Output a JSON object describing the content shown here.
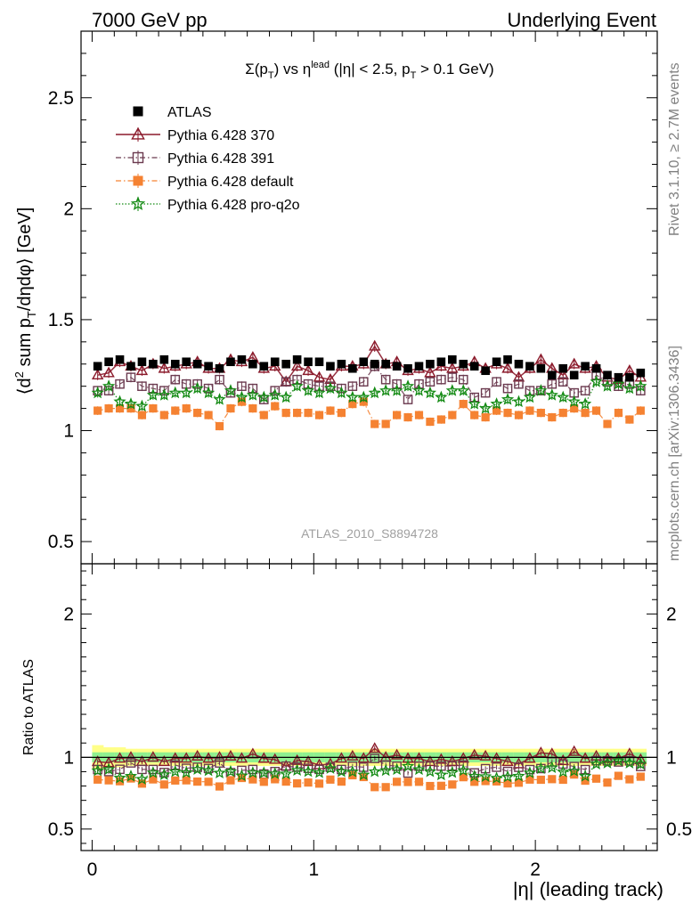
{
  "header": {
    "left": "7000 GeV pp",
    "right": "Underlying Event"
  },
  "side_labels": {
    "rivet": "Rivet 3.1.10, ≥ 2.7M events",
    "mcplots": "mcplots.cern.ch [arXiv:1306.3436]"
  },
  "chart_data": {
    "type": "scatter",
    "title_parts": {
      "sigma": "Σ(p",
      "sub_T": "T",
      "vs": ") vs η",
      "sup_lead": "lead",
      "cond": " (|η| < 2.5, p",
      "sub_T2": "T",
      "cond2": " > 0.1 GeV)"
    },
    "analysis_id": "ATLAS_2010_S8894728",
    "xlabel": "|η| (leading track)",
    "ylabel_parts": {
      "open": "⟨d",
      "sup2": "2",
      "mid": " sum p",
      "subT": "T",
      "close": "/dηdφ⟩ [GeV]"
    },
    "ratio_ylabel": "Ratio to ATLAS",
    "xlim": [
      -0.05,
      2.55
    ],
    "ylim": [
      0.4,
      2.8
    ],
    "ratio_ylim": [
      0.35,
      2.35
    ],
    "x_ticks": [
      0,
      1,
      2
    ],
    "y_ticks": [
      0.5,
      1,
      1.5,
      2,
      2.5
    ],
    "ratio_y_ticks": [
      0.5,
      1,
      2
    ],
    "legend_position": "top-left",
    "colors": {
      "atlas": "#000000",
      "p370": "#8b1a2b",
      "p391": "#6b3a4f",
      "pdefault": "#f58232",
      "pq2o": "#138a13",
      "band_inner": "#8ff090",
      "band_outer": "#ffff88"
    },
    "x_start": 0.025,
    "x_step": 0.05,
    "data_ATLAS": [
      1.29,
      1.31,
      1.32,
      1.29,
      1.31,
      1.3,
      1.32,
      1.3,
      1.31,
      1.3,
      1.29,
      1.28,
      1.31,
      1.32,
      1.3,
      1.29,
      1.31,
      1.3,
      1.32,
      1.31,
      1.31,
      1.29,
      1.3,
      1.28,
      1.31,
      1.3,
      1.3,
      1.29,
      1.28,
      1.29,
      1.3,
      1.31,
      1.32,
      1.3,
      1.29,
      1.27,
      1.31,
      1.32,
      1.3,
      1.29,
      1.28,
      1.25,
      1.28,
      1.25,
      1.29,
      1.28,
      1.25,
      1.24,
      1.24,
      1.26
    ],
    "series": [
      {
        "name": "ATLAS",
        "key": "atlas",
        "marker": "filled-square"
      },
      {
        "name": "Pythia 6.428 370",
        "key": "p370",
        "marker": "open-triangle",
        "values": [
          1.25,
          1.26,
          1.31,
          1.29,
          1.27,
          1.3,
          1.28,
          1.29,
          1.3,
          1.31,
          1.28,
          1.28,
          1.32,
          1.31,
          1.33,
          1.28,
          1.29,
          1.22,
          1.29,
          1.27,
          1.24,
          1.23,
          1.29,
          1.29,
          1.3,
          1.38,
          1.3,
          1.31,
          1.27,
          1.28,
          1.26,
          1.29,
          1.28,
          1.29,
          1.31,
          1.28,
          1.3,
          1.28,
          1.24,
          1.28,
          1.32,
          1.28,
          1.25,
          1.3,
          1.28,
          1.29,
          1.24,
          1.23,
          1.27,
          1.24
        ]
      },
      {
        "name": "Pythia 6.428 391",
        "key": "p391",
        "marker": "open-square",
        "values": [
          1.18,
          1.18,
          1.21,
          1.24,
          1.2,
          1.19,
          1.18,
          1.23,
          1.21,
          1.21,
          1.19,
          1.23,
          1.17,
          1.2,
          1.19,
          1.14,
          1.18,
          1.22,
          1.23,
          1.21,
          1.2,
          1.2,
          1.19,
          1.2,
          1.22,
          1.29,
          1.23,
          1.21,
          1.14,
          1.21,
          1.22,
          1.23,
          1.24,
          1.23,
          1.15,
          1.17,
          1.22,
          1.19,
          1.21,
          1.18,
          1.18,
          1.21,
          1.22,
          1.17,
          1.18,
          1.25,
          1.22,
          1.2,
          1.21,
          1.18
        ]
      },
      {
        "name": "Pythia 6.428 default",
        "key": "pdefault",
        "marker": "filled-square",
        "values": [
          1.09,
          1.1,
          1.1,
          1.1,
          1.07,
          1.1,
          1.07,
          1.09,
          1.1,
          1.08,
          1.07,
          1.02,
          1.1,
          1.13,
          1.1,
          1.07,
          1.11,
          1.08,
          1.08,
          1.08,
          1.07,
          1.09,
          1.08,
          1.12,
          1.13,
          1.03,
          1.03,
          1.07,
          1.06,
          1.07,
          1.04,
          1.05,
          1.07,
          1.12,
          1.07,
          1.06,
          1.09,
          1.08,
          1.07,
          1.09,
          1.08,
          1.06,
          1.08,
          1.1,
          1.08,
          1.09,
          1.03,
          1.08,
          1.05,
          1.09
        ]
      },
      {
        "name": "Pythia 6.428 pro-q2o",
        "key": "pq2o",
        "marker": "star",
        "values": [
          1.17,
          1.2,
          1.13,
          1.12,
          1.11,
          1.16,
          1.16,
          1.17,
          1.17,
          1.19,
          1.17,
          1.14,
          1.18,
          1.15,
          1.16,
          1.15,
          1.16,
          1.15,
          1.2,
          1.18,
          1.17,
          1.19,
          1.17,
          1.15,
          1.15,
          1.17,
          1.18,
          1.18,
          1.2,
          1.18,
          1.17,
          1.15,
          1.18,
          1.18,
          1.12,
          1.1,
          1.12,
          1.14,
          1.13,
          1.15,
          1.18,
          1.16,
          1.15,
          1.13,
          1.12,
          1.22,
          1.2,
          1.21,
          1.19,
          1.2
        ]
      }
    ]
  }
}
